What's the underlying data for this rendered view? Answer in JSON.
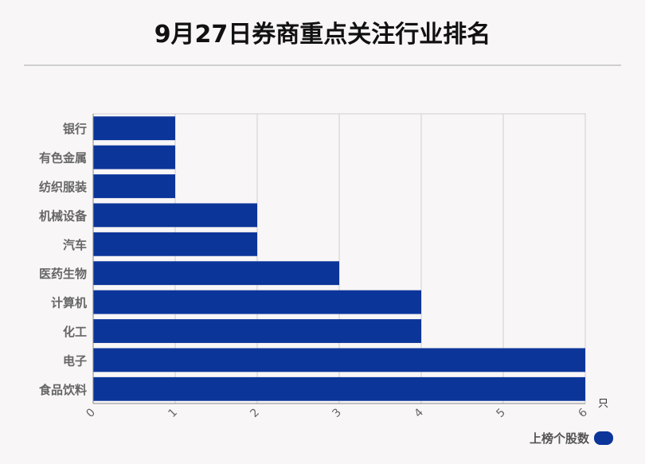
{
  "title": "9月27日券商重点关注行业排名",
  "legend": {
    "label": "上榜个股数",
    "color": "#0c3599"
  },
  "chart_data": {
    "type": "bar",
    "orientation": "horizontal",
    "title": "9月27日券商重点关注行业排名",
    "categories": [
      "银行",
      "有色金属",
      "纺织服装",
      "机械设备",
      "汽车",
      "医药生物",
      "计算机",
      "化工",
      "电子",
      "食品饮料"
    ],
    "series": [
      {
        "name": "上榜个股数",
        "values": [
          1,
          1,
          1,
          2,
          2,
          3,
          4,
          4,
          6,
          6
        ],
        "color": "#0c3599"
      }
    ],
    "xticks": [
      "0",
      "1",
      "2",
      "3",
      "4",
      "5",
      "6"
    ],
    "xlim": [
      0,
      6
    ],
    "x_unit": "只",
    "grid": true,
    "legend_position": "bottom-right"
  }
}
